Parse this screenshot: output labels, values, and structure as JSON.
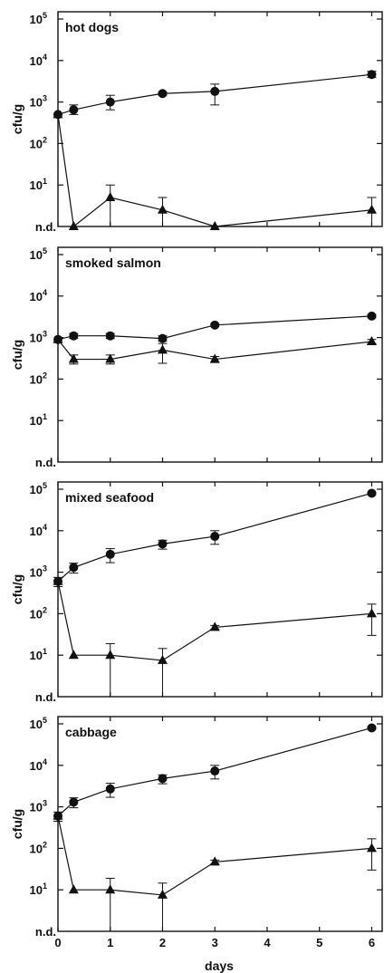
{
  "chart_data": {
    "type": "scatter",
    "xlabel": "days",
    "ylabel": "cfu/g",
    "xlim": [
      0,
      6.2
    ],
    "ylim_log10": [
      0,
      5
    ],
    "x_ticks": [
      "0",
      "1",
      "2",
      "3",
      "4",
      "5",
      "6"
    ],
    "y_tick_base": "10",
    "y_tick_exponents": [
      "1",
      "2",
      "3",
      "4",
      "5"
    ],
    "y_bottom_label": "n.d.",
    "y_scale": "log",
    "grid": false,
    "panels": [
      {
        "title": "hot dogs",
        "series": [
          {
            "marker": "circle",
            "x": [
              0,
              0.3,
              1,
              2,
              3,
              6
            ],
            "y": [
              500,
              650,
              1000,
              1600,
              1800,
              4600
            ],
            "err_hi": [
              500,
              850,
              1450,
              1750,
              2700,
              5500
            ],
            "err_lo": [
              500,
              500,
              650,
              1450,
              850,
              3900
            ]
          },
          {
            "marker": "triangle",
            "x": [
              0,
              0.3,
              1,
              2,
              3,
              6
            ],
            "y": [
              500,
              "n.d.",
              5,
              2.5,
              "n.d.",
              2.5
            ],
            "err_hi": [
              null,
              null,
              10,
              5,
              null,
              5
            ],
            "err_lo": [
              null,
              null,
              "n.d.",
              "n.d.",
              null,
              "n.d."
            ]
          }
        ]
      },
      {
        "title": "smoked salmon",
        "series": [
          {
            "marker": "circle",
            "x": [
              0,
              0.3,
              1,
              2,
              3,
              6
            ],
            "y": [
              900,
              1100,
              1100,
              950,
              2000,
              3300
            ],
            "err_hi": [
              null,
              1250,
              1250,
              1100,
              2150,
              3600
            ],
            "err_lo": [
              null,
              950,
              950,
              820,
              1850,
              3000
            ]
          },
          {
            "marker": "triangle",
            "x": [
              0,
              0.3,
              1,
              2,
              3,
              6
            ],
            "y": [
              900,
              300,
              300,
              500,
              300,
              800
            ],
            "err_hi": [
              null,
              380,
              380,
              720,
              350,
              900
            ],
            "err_lo": [
              null,
              230,
              230,
              240,
              250,
              720
            ]
          }
        ]
      },
      {
        "title": "mixed seafood",
        "series": [
          {
            "marker": "circle",
            "x": [
              0,
              0.3,
              1,
              2,
              3,
              6
            ],
            "y": [
              600,
              1300,
              2700,
              4800,
              7300,
              80000
            ],
            "err_hi": [
              750,
              1650,
              3700,
              5900,
              10000,
              85000
            ],
            "err_lo": [
              450,
              950,
              1700,
              3600,
              4700,
              75000
            ]
          },
          {
            "marker": "triangle",
            "x": [
              0,
              0.3,
              1,
              2,
              3,
              6
            ],
            "y": [
              600,
              10,
              10,
              7.5,
              47,
              100
            ],
            "err_hi": [
              null,
              null,
              19,
              14.5,
              52,
              170
            ],
            "err_lo": [
              null,
              null,
              "n.d.",
              "n.d.",
              42,
              30
            ]
          }
        ]
      },
      {
        "title": "cabbage",
        "series": [
          {
            "marker": "circle",
            "x": [
              0,
              0.3,
              1,
              2,
              3,
              6
            ],
            "y": [
              600,
              1300,
              2700,
              4800,
              7300,
              80000
            ],
            "err_hi": [
              750,
              1650,
              3700,
              5900,
              10000,
              85000
            ],
            "err_lo": [
              450,
              950,
              1700,
              3600,
              4700,
              75000
            ]
          },
          {
            "marker": "triangle",
            "x": [
              0,
              0.3,
              1,
              2,
              3,
              6
            ],
            "y": [
              600,
              10,
              10,
              7.5,
              47,
              100
            ],
            "err_hi": [
              null,
              null,
              19,
              14.5,
              52,
              170
            ],
            "err_lo": [
              null,
              null,
              "n.d.",
              "n.d.",
              42,
              30
            ]
          }
        ]
      }
    ]
  }
}
